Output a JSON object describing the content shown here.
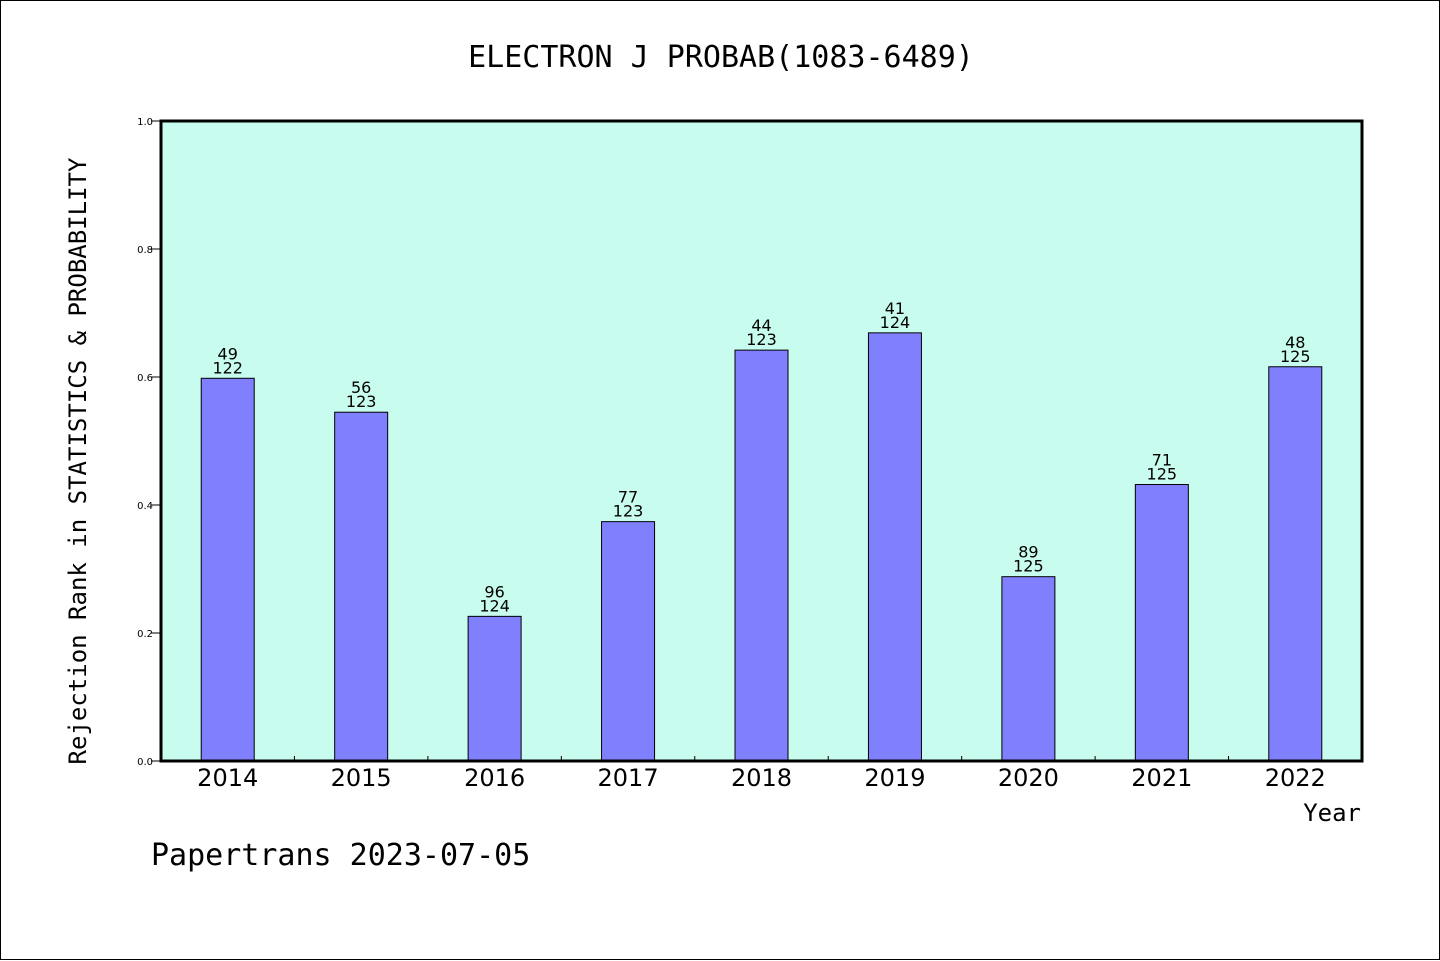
{
  "chart_data": {
    "type": "bar",
    "title": "ELECTRON J PROBAB(1083-6489)",
    "xlabel": "Year",
    "ylabel": "Rejection Rank in STATISTICS & PROBABILITY",
    "categories": [
      "2014",
      "2015",
      "2016",
      "2017",
      "2018",
      "2019",
      "2020",
      "2021",
      "2022"
    ],
    "values": [
      0.598,
      0.545,
      0.226,
      0.374,
      0.642,
      0.669,
      0.288,
      0.432,
      0.616
    ],
    "labels_top": [
      "49",
      "56",
      "96",
      "77",
      "44",
      "41",
      "89",
      "71",
      "48"
    ],
    "labels_bottom": [
      "122",
      "123",
      "124",
      "123",
      "123",
      "124",
      "125",
      "125",
      "125"
    ],
    "ylim": [
      0,
      1.0
    ],
    "yticks": [
      "0.0",
      "0.2",
      "0.4",
      "0.6",
      "0.8",
      "1.0"
    ],
    "grid": false,
    "colors": {
      "plot_background": "#c8fcee",
      "bar_fill": "#8080ff",
      "bar_stroke": "#000000"
    }
  },
  "footer": "Papertrans 2023-07-05"
}
